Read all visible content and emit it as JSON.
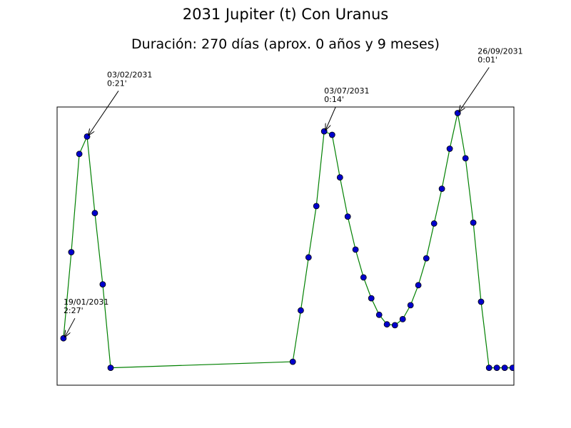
{
  "chart_data": {
    "type": "line",
    "title": "2031 Jupiter (t) Con Uranus",
    "subtitle": "Duración: 270 días (aprox. 0 años y 9 meses)",
    "xlabel": "",
    "ylabel": "",
    "grid": false,
    "xlim": [
      -3.6,
      254.0
    ],
    "ylim": [
      -0.2,
      3.0
    ],
    "colors": {
      "line": "#008000",
      "marker": "#0000cc"
    },
    "series": [
      {
        "x": [
          0,
          4.4,
          8.9,
          13.3,
          17.7,
          22.1,
          26.6,
          129.3,
          133.8,
          138.2,
          142.6,
          147.0,
          151.5,
          155.9,
          160.3,
          164.7,
          169.2,
          173.6,
          178.0,
          182.4,
          186.9,
          191.3,
          195.7,
          200.1,
          204.6,
          209.0,
          213.4,
          217.8,
          222.3,
          226.7,
          231.1,
          235.5,
          240.0,
          244.4,
          248.8,
          253.3
        ],
        "y": [
          0.34,
          1.33,
          2.46,
          2.66,
          1.78,
          0.96,
          0.0,
          0.07,
          0.66,
          1.27,
          1.86,
          2.72,
          2.68,
          2.19,
          1.74,
          1.36,
          1.04,
          0.8,
          0.61,
          0.5,
          0.49,
          0.56,
          0.72,
          0.95,
          1.26,
          1.66,
          2.06,
          2.52,
          2.93,
          2.41,
          1.67,
          0.76,
          0.0,
          0.0,
          0.0,
          0.0
        ]
      }
    ],
    "annotations": [
      {
        "date": "19/01/2031",
        "value": "2:27'"
      },
      {
        "date": "03/02/2031",
        "value": "0:21'"
      },
      {
        "date": "03/07/2031",
        "value": "0:14'"
      },
      {
        "date": "26/09/2031",
        "value": "0:01'"
      }
    ]
  }
}
